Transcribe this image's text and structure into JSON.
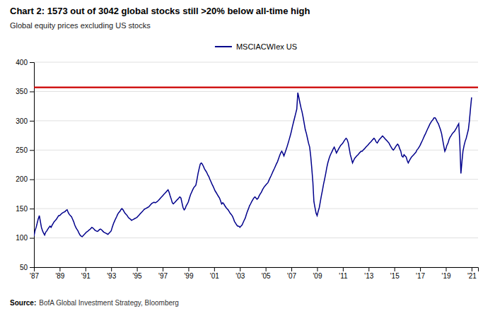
{
  "chart_data": {
    "type": "line",
    "title": "Chart 2: 1573 out of 3042 global stocks still >20% below all-time high",
    "subtitle": "Global equity prices excluding US stocks",
    "source": {
      "label": "Source:",
      "text": "BofA Global Investment Strategy, Bloomberg"
    },
    "xlim": [
      1987,
      2021.5
    ],
    "xticks": [
      {
        "value": 1987,
        "label": "'87"
      },
      {
        "value": 1989,
        "label": "'89"
      },
      {
        "value": 1991,
        "label": "'91"
      },
      {
        "value": 1993,
        "label": "'93"
      },
      {
        "value": 1995,
        "label": "'95"
      },
      {
        "value": 1997,
        "label": "'97"
      },
      {
        "value": 1999,
        "label": "'99"
      },
      {
        "value": 2001,
        "label": "'01"
      },
      {
        "value": 2003,
        "label": "'03"
      },
      {
        "value": 2005,
        "label": "'05"
      },
      {
        "value": 2007,
        "label": "'07"
      },
      {
        "value": 2009,
        "label": "'09"
      },
      {
        "value": 2011,
        "label": "'11"
      },
      {
        "value": 2013,
        "label": "'13"
      },
      {
        "value": 2015,
        "label": "'15"
      },
      {
        "value": 2017,
        "label": "'17"
      },
      {
        "value": 2019,
        "label": "'19"
      },
      {
        "value": 2021,
        "label": "'21"
      }
    ],
    "ylim": [
      50,
      400
    ],
    "yticks": [
      50,
      100,
      150,
      200,
      250,
      300,
      350,
      400
    ],
    "grid": true,
    "legend": "top",
    "hline": {
      "value": 357,
      "color": "#cc0000"
    },
    "x": [
      1987.0,
      1987.08,
      1987.17,
      1987.25,
      1987.33,
      1987.42,
      1987.5,
      1987.58,
      1987.67,
      1987.75,
      1987.83,
      1987.92,
      1988.0,
      1988.08,
      1988.17,
      1988.25,
      1988.33,
      1988.42,
      1988.5,
      1988.58,
      1988.67,
      1988.75,
      1988.83,
      1988.92,
      1989.0,
      1989.08,
      1989.17,
      1989.25,
      1989.33,
      1989.42,
      1989.5,
      1989.58,
      1989.67,
      1989.75,
      1989.83,
      1989.92,
      1990.0,
      1990.08,
      1990.17,
      1990.25,
      1990.33,
      1990.42,
      1990.5,
      1990.58,
      1990.67,
      1990.75,
      1990.83,
      1990.92,
      1991.0,
      1991.08,
      1991.17,
      1991.25,
      1991.33,
      1991.42,
      1991.5,
      1991.58,
      1991.67,
      1991.75,
      1991.83,
      1991.92,
      1992.0,
      1992.08,
      1992.17,
      1992.25,
      1992.33,
      1992.42,
      1992.5,
      1992.58,
      1992.67,
      1992.75,
      1992.83,
      1992.92,
      1993.0,
      1993.08,
      1993.17,
      1993.25,
      1993.33,
      1993.42,
      1993.5,
      1993.58,
      1993.67,
      1993.75,
      1993.83,
      1993.92,
      1994.0,
      1994.08,
      1994.17,
      1994.25,
      1994.33,
      1994.42,
      1994.5,
      1994.58,
      1994.67,
      1994.75,
      1994.83,
      1994.92,
      1995.0,
      1995.08,
      1995.17,
      1995.25,
      1995.33,
      1995.42,
      1995.5,
      1995.58,
      1995.67,
      1995.75,
      1995.83,
      1995.92,
      1996.0,
      1996.08,
      1996.17,
      1996.25,
      1996.33,
      1996.42,
      1996.5,
      1996.58,
      1996.67,
      1996.75,
      1996.83,
      1996.92,
      1997.0,
      1997.08,
      1997.17,
      1997.25,
      1997.33,
      1997.42,
      1997.5,
      1997.58,
      1997.67,
      1997.75,
      1997.83,
      1997.92,
      1998.0,
      1998.08,
      1998.17,
      1998.25,
      1998.33,
      1998.42,
      1998.5,
      1998.58,
      1998.67,
      1998.75,
      1998.83,
      1998.92,
      1999.0,
      1999.08,
      1999.17,
      1999.25,
      1999.33,
      1999.42,
      1999.5,
      1999.58,
      1999.67,
      1999.75,
      1999.83,
      1999.92,
      2000.0,
      2000.08,
      2000.17,
      2000.25,
      2000.33,
      2000.42,
      2000.5,
      2000.58,
      2000.67,
      2000.75,
      2000.83,
      2000.92,
      2001.0,
      2001.08,
      2001.17,
      2001.25,
      2001.33,
      2001.42,
      2001.5,
      2001.58,
      2001.67,
      2001.75,
      2001.83,
      2001.92,
      2002.0,
      2002.08,
      2002.17,
      2002.25,
      2002.33,
      2002.42,
      2002.5,
      2002.58,
      2002.67,
      2002.75,
      2002.83,
      2002.92,
      2003.0,
      2003.08,
      2003.17,
      2003.25,
      2003.33,
      2003.42,
      2003.5,
      2003.58,
      2003.67,
      2003.75,
      2003.83,
      2003.92,
      2004.0,
      2004.08,
      2004.17,
      2004.25,
      2004.33,
      2004.42,
      2004.5,
      2004.58,
      2004.67,
      2004.75,
      2004.83,
      2004.92,
      2005.0,
      2005.08,
      2005.17,
      2005.25,
      2005.33,
      2005.42,
      2005.5,
      2005.58,
      2005.67,
      2005.75,
      2005.83,
      2005.92,
      2006.0,
      2006.08,
      2006.17,
      2006.25,
      2006.33,
      2006.42,
      2006.5,
      2006.58,
      2006.67,
      2006.75,
      2006.83,
      2006.92,
      2007.0,
      2007.08,
      2007.17,
      2007.25,
      2007.33,
      2007.42,
      2007.5,
      2007.58,
      2007.67,
      2007.75,
      2007.83,
      2007.92,
      2008.0,
      2008.08,
      2008.17,
      2008.25,
      2008.33,
      2008.42,
      2008.5,
      2008.58,
      2008.67,
      2008.75,
      2008.83,
      2008.92,
      2009.0,
      2009.08,
      2009.17,
      2009.25,
      2009.33,
      2009.42,
      2009.5,
      2009.58,
      2009.67,
      2009.75,
      2009.83,
      2009.92,
      2010.0,
      2010.08,
      2010.17,
      2010.25,
      2010.33,
      2010.42,
      2010.5,
      2010.58,
      2010.67,
      2010.75,
      2010.83,
      2010.92,
      2011.0,
      2011.08,
      2011.17,
      2011.25,
      2011.33,
      2011.42,
      2011.5,
      2011.58,
      2011.67,
      2011.75,
      2011.83,
      2011.92,
      2012.0,
      2012.08,
      2012.17,
      2012.25,
      2012.33,
      2012.42,
      2012.5,
      2012.58,
      2012.67,
      2012.75,
      2012.83,
      2012.92,
      2013.0,
      2013.08,
      2013.17,
      2013.25,
      2013.33,
      2013.42,
      2013.5,
      2013.58,
      2013.67,
      2013.75,
      2013.83,
      2013.92,
      2014.0,
      2014.08,
      2014.17,
      2014.25,
      2014.33,
      2014.42,
      2014.5,
      2014.58,
      2014.67,
      2014.75,
      2014.83,
      2014.92,
      2015.0,
      2015.08,
      2015.17,
      2015.25,
      2015.33,
      2015.42,
      2015.5,
      2015.58,
      2015.67,
      2015.75,
      2015.83,
      2015.92,
      2016.0,
      2016.08,
      2016.17,
      2016.25,
      2016.33,
      2016.42,
      2016.5,
      2016.58,
      2016.67,
      2016.75,
      2016.83,
      2016.92,
      2017.0,
      2017.08,
      2017.17,
      2017.25,
      2017.33,
      2017.42,
      2017.5,
      2017.58,
      2017.67,
      2017.75,
      2017.83,
      2017.92,
      2018.0,
      2018.08,
      2018.17,
      2018.25,
      2018.33,
      2018.42,
      2018.5,
      2018.58,
      2018.67,
      2018.75,
      2018.83,
      2018.92,
      2019.0,
      2019.08,
      2019.17,
      2019.25,
      2019.33,
      2019.42,
      2019.5,
      2019.58,
      2019.67,
      2019.75,
      2019.83,
      2019.92,
      2020.0,
      2020.08,
      2020.17,
      2020.25,
      2020.33,
      2020.42,
      2020.5,
      2020.58,
      2020.67,
      2020.75,
      2020.83,
      2020.92,
      2021.0
    ],
    "series": [
      {
        "name": "MSCIACWIex US",
        "color": "#00008B",
        "values": [
          103,
          112,
          118,
          125,
          132,
          138,
          128,
          118,
          112,
          108,
          105,
          110,
          112,
          115,
          118,
          120,
          118,
          122,
          125,
          128,
          130,
          132,
          135,
          138,
          138,
          140,
          142,
          143,
          144,
          145,
          147,
          148,
          143,
          140,
          138,
          136,
          132,
          128,
          122,
          118,
          115,
          112,
          108,
          105,
          103,
          102,
          104,
          106,
          108,
          110,
          111,
          113,
          114,
          116,
          118,
          117,
          115,
          113,
          112,
          111,
          112,
          114,
          115,
          114,
          112,
          110,
          109,
          108,
          107,
          106,
          108,
          110,
          112,
          118,
          124,
          128,
          132,
          136,
          140,
          143,
          145,
          148,
          150,
          148,
          145,
          142,
          140,
          138,
          135,
          133,
          132,
          130,
          131,
          132,
          133,
          134,
          135,
          137,
          139,
          141,
          143,
          145,
          147,
          149,
          150,
          151,
          152,
          153,
          155,
          157,
          159,
          160,
          161,
          160,
          161,
          162,
          164,
          166,
          168,
          170,
          172,
          174,
          176,
          178,
          180,
          182,
          178,
          172,
          166,
          160,
          158,
          160,
          162,
          164,
          166,
          168,
          170,
          168,
          160,
          152,
          148,
          150,
          155,
          158,
          162,
          168,
          174,
          178,
          182,
          186,
          188,
          190,
          200,
          210,
          218,
          226,
          228,
          226,
          222,
          218,
          215,
          212,
          208,
          205,
          200,
          196,
          192,
          188,
          184,
          180,
          177,
          174,
          171,
          168,
          163,
          158,
          160,
          158,
          155,
          152,
          150,
          148,
          145,
          142,
          140,
          137,
          133,
          128,
          125,
          122,
          120,
          120,
          118,
          120,
          122,
          126,
          130,
          134,
          140,
          145,
          150,
          155,
          158,
          162,
          165,
          168,
          170,
          168,
          166,
          168,
          172,
          175,
          178,
          182,
          185,
          188,
          190,
          192,
          194,
          198,
          202,
          206,
          210,
          214,
          218,
          222,
          226,
          230,
          235,
          240,
          245,
          248,
          245,
          240,
          245,
          250,
          256,
          262,
          268,
          275,
          282,
          290,
          298,
          305,
          312,
          320,
          348,
          340,
          330,
          322,
          315,
          305,
          295,
          285,
          278,
          270,
          262,
          255,
          240,
          220,
          195,
          162,
          152,
          142,
          138,
          145,
          152,
          162,
          172,
          182,
          192,
          200,
          210,
          220,
          228,
          235,
          240,
          244,
          248,
          252,
          255,
          250,
          245,
          248,
          252,
          255,
          258,
          260,
          262,
          265,
          268,
          270,
          268,
          262,
          252,
          242,
          235,
          228,
          232,
          236,
          238,
          240,
          242,
          244,
          246,
          248,
          248,
          250,
          252,
          254,
          256,
          258,
          260,
          262,
          264,
          266,
          268,
          270,
          268,
          264,
          262,
          265,
          268,
          270,
          272,
          274,
          272,
          270,
          268,
          266,
          264,
          262,
          258,
          255,
          252,
          250,
          252,
          255,
          258,
          260,
          258,
          252,
          248,
          240,
          238,
          242,
          240,
          238,
          232,
          228,
          232,
          235,
          238,
          240,
          242,
          244,
          246,
          250,
          252,
          255,
          258,
          262,
          266,
          270,
          274,
          278,
          282,
          286,
          290,
          294,
          297,
          300,
          302,
          305,
          305,
          302,
          298,
          295,
          290,
          285,
          278,
          268,
          258,
          248,
          252,
          258,
          262,
          268,
          272,
          275,
          278,
          280,
          282,
          285,
          288,
          292,
          295,
          265,
          210,
          230,
          248,
          258,
          265,
          270,
          278,
          285,
          300,
          322,
          340
        ]
      }
    ]
  }
}
